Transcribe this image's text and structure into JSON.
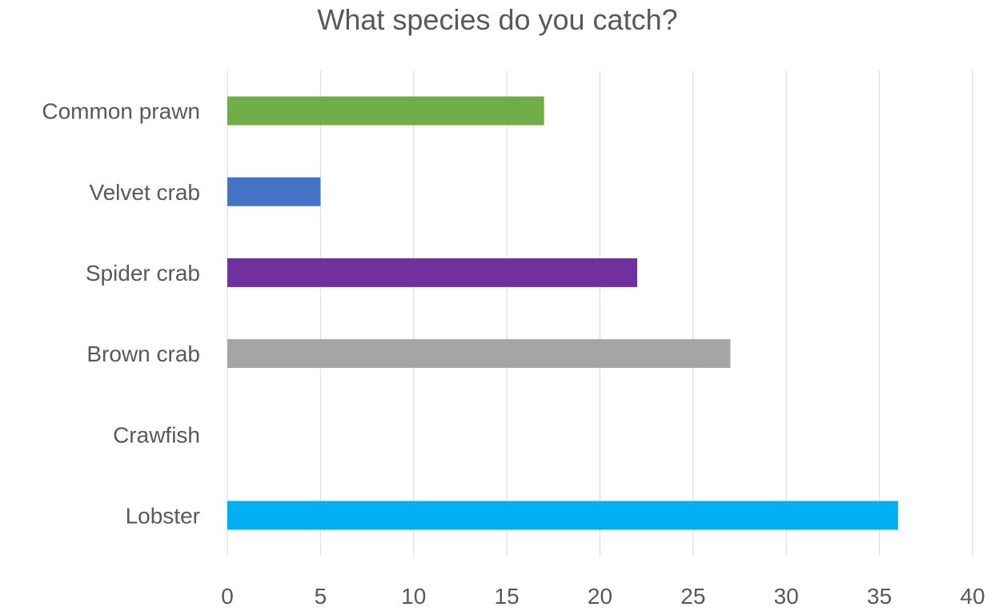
{
  "chart_data": {
    "type": "bar",
    "orientation": "horizontal",
    "title": "What species do you catch?",
    "categories": [
      "Common prawn",
      "Velvet crab",
      "Spider crab",
      "Brown crab",
      "Crawfish",
      "Lobster"
    ],
    "values": [
      17,
      5,
      22,
      27,
      0,
      36
    ],
    "colors": [
      "#70ad47",
      "#4472c4",
      "#7030a0",
      "#a5a5a5",
      "#ffffff",
      "#00b0f0"
    ],
    "xlim": [
      0,
      40
    ],
    "xticks": [
      0,
      5,
      10,
      15,
      20,
      25,
      30,
      35,
      40
    ],
    "grid": true,
    "legend": "none",
    "xlabel": "",
    "ylabel": ""
  }
}
